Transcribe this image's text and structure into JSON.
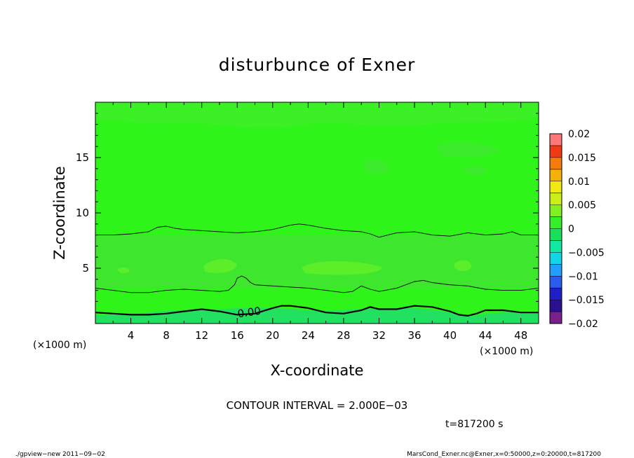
{
  "chart_data": {
    "type": "heatmap",
    "title": "disturbunce of Exner",
    "xlabel": "X-coordinate",
    "ylabel": "Z-coordinate",
    "x_unit_left": "(×1000 m)",
    "x_unit_right": "(×1000 m)",
    "xlim": [
      0,
      50
    ],
    "ylim": [
      0,
      20
    ],
    "x_ticks": [
      4,
      8,
      12,
      16,
      20,
      24,
      28,
      32,
      36,
      40,
      44,
      48
    ],
    "y_ticks": [
      5,
      10,
      15
    ],
    "colorbar": {
      "levels": [
        -0.02,
        -0.0175,
        -0.015,
        -0.0125,
        -0.01,
        -0.0075,
        -0.005,
        -0.0025,
        0,
        0.0025,
        0.005,
        0.0075,
        0.01,
        0.0125,
        0.015,
        0.0175,
        0.02
      ],
      "colors": [
        "#7a1f8c",
        "#2a1090",
        "#1f1fc8",
        "#2a5cf0",
        "#1fa0ff",
        "#12d6e8",
        "#12e8a0",
        "#18e05a",
        "#34f02a",
        "#80f020",
        "#c8f018",
        "#f0e810",
        "#f5b00a",
        "#f57c0a",
        "#f03a14",
        "#ff7878"
      ],
      "tick_labels": [
        "0.02",
        "0.015",
        "0.01",
        "0.005",
        "0",
        "−0.005",
        "−0.01",
        "−0.015",
        "−0.02"
      ],
      "tick_values": [
        0.02,
        0.015,
        0.01,
        0.005,
        0,
        -0.005,
        -0.01,
        -0.015,
        -0.02
      ]
    },
    "contour_interval_text": "CONTOUR INTERVAL = 2.000E−03",
    "contour_label": "0.00",
    "time_text": "t=817200 s",
    "contour_lines": [
      {
        "name": "upper",
        "bold": false,
        "points": [
          [
            0,
            8.0
          ],
          [
            2,
            8.0
          ],
          [
            4,
            8.1
          ],
          [
            6,
            8.3
          ],
          [
            7,
            8.7
          ],
          [
            8,
            8.8
          ],
          [
            9,
            8.6
          ],
          [
            10,
            8.5
          ],
          [
            12,
            8.4
          ],
          [
            14,
            8.3
          ],
          [
            16,
            8.2
          ],
          [
            18,
            8.3
          ],
          [
            20,
            8.5
          ],
          [
            22,
            8.9
          ],
          [
            23,
            9.0
          ],
          [
            24,
            8.9
          ],
          [
            26,
            8.6
          ],
          [
            28,
            8.4
          ],
          [
            30,
            8.3
          ],
          [
            31,
            8.1
          ],
          [
            32,
            7.8
          ],
          [
            33,
            8.0
          ],
          [
            34,
            8.2
          ],
          [
            36,
            8.3
          ],
          [
            38,
            8.0
          ],
          [
            40,
            7.9
          ],
          [
            42,
            8.2
          ],
          [
            44,
            8.0
          ],
          [
            46,
            8.1
          ],
          [
            47,
            8.3
          ],
          [
            48,
            8.0
          ],
          [
            50,
            8.0
          ]
        ]
      },
      {
        "name": "middle",
        "bold": false,
        "points": [
          [
            0,
            3.2
          ],
          [
            2,
            3.0
          ],
          [
            4,
            2.8
          ],
          [
            6,
            2.8
          ],
          [
            8,
            3.0
          ],
          [
            10,
            3.1
          ],
          [
            12,
            3.0
          ],
          [
            14,
            2.9
          ],
          [
            15,
            3.0
          ],
          [
            15.7,
            3.5
          ],
          [
            16,
            4.1
          ],
          [
            16.5,
            4.3
          ],
          [
            17,
            4.1
          ],
          [
            17.5,
            3.7
          ],
          [
            18,
            3.5
          ],
          [
            20,
            3.4
          ],
          [
            22,
            3.3
          ],
          [
            24,
            3.2
          ],
          [
            26,
            3.0
          ],
          [
            28,
            2.8
          ],
          [
            29,
            2.9
          ],
          [
            30,
            3.4
          ],
          [
            31,
            3.1
          ],
          [
            32,
            2.9
          ],
          [
            34,
            3.2
          ],
          [
            36,
            3.8
          ],
          [
            37,
            3.9
          ],
          [
            38,
            3.7
          ],
          [
            40,
            3.5
          ],
          [
            42,
            3.4
          ],
          [
            44,
            3.1
          ],
          [
            46,
            3.0
          ],
          [
            48,
            3.0
          ],
          [
            50,
            3.2
          ]
        ]
      },
      {
        "name": "zero",
        "bold": true,
        "points": [
          [
            0,
            1.0
          ],
          [
            2,
            0.9
          ],
          [
            4,
            0.8
          ],
          [
            6,
            0.8
          ],
          [
            8,
            0.9
          ],
          [
            10,
            1.1
          ],
          [
            12,
            1.3
          ],
          [
            14,
            1.1
          ],
          [
            16,
            0.8
          ],
          [
            18,
            0.9
          ],
          [
            20,
            1.4
          ],
          [
            21,
            1.6
          ],
          [
            22,
            1.6
          ],
          [
            24,
            1.4
          ],
          [
            26,
            1.0
          ],
          [
            28,
            0.9
          ],
          [
            30,
            1.2
          ],
          [
            31,
            1.5
          ],
          [
            32,
            1.3
          ],
          [
            34,
            1.3
          ],
          [
            36,
            1.6
          ],
          [
            38,
            1.5
          ],
          [
            40,
            1.1
          ],
          [
            41,
            0.8
          ],
          [
            42,
            0.7
          ],
          [
            43,
            0.9
          ],
          [
            44,
            1.2
          ],
          [
            46,
            1.2
          ],
          [
            48,
            1.0
          ],
          [
            50,
            1.0
          ]
        ]
      }
    ]
  },
  "footer": {
    "left": "./gpview−new   2011−09−02",
    "right": "MarsCond_Exner.nc@Exner,x=0:50000,z=0:20000,t=817200"
  }
}
